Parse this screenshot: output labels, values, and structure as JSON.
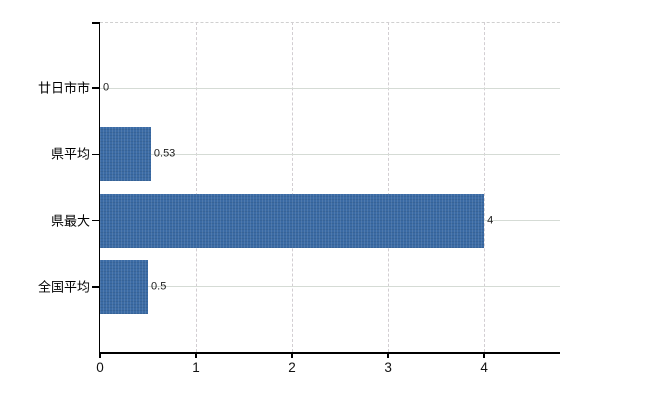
{
  "chart_data": {
    "type": "bar",
    "orientation": "horizontal",
    "title": "",
    "xlabel": "",
    "ylabel": "",
    "legend": "none",
    "grid": "on",
    "categories": [
      "廿日市市",
      "県平均",
      "県最大",
      "全国平均"
    ],
    "values": [
      0,
      0.53,
      4,
      0.5
    ],
    "value_labels": [
      "0",
      "0.53",
      "4",
      "0.5"
    ],
    "x_ticks": [
      "0",
      "1",
      "2",
      "3",
      "4"
    ],
    "x_tick_values": [
      0,
      1,
      2,
      3,
      4
    ],
    "xlim": [
      0,
      4.79
    ],
    "bar_color": "#3b6ba5",
    "axis_color": "#000000",
    "h_gridline_color": "#d5dbd5",
    "v_gridline_color": "#d2ced2",
    "background_color": "#ffffff"
  }
}
